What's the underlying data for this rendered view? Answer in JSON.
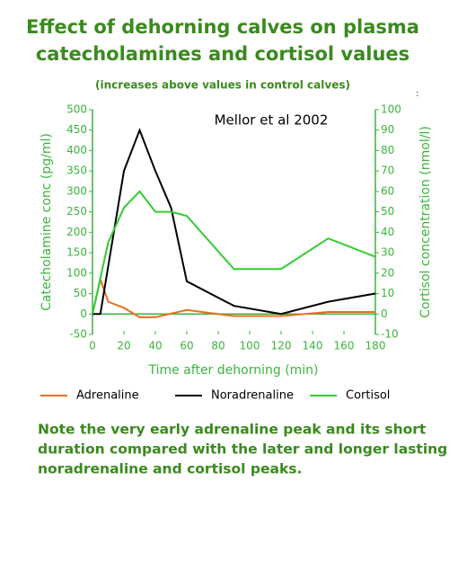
{
  "chart_data": {
    "type": "line",
    "title": [
      "Effect of dehorning calves on plasma",
      "catecholamines and cortisol values"
    ],
    "subtitle": "(increases above values in control calves)",
    "corner_mark": ":",
    "annotation": "Mellor et al 2002",
    "x_label": "Time after dehorning (min)",
    "y_label": "Catecholamine conc (pg/ml)",
    "y2_label": "Cortisol concentration (nmol/l)",
    "xlim": [
      0,
      180
    ],
    "xticks": [
      0,
      20,
      40,
      60,
      80,
      100,
      120,
      140,
      160,
      180
    ],
    "ylim": [
      -50,
      500
    ],
    "yticks": [
      -50,
      0,
      50,
      100,
      150,
      200,
      250,
      300,
      350,
      400,
      450,
      500
    ],
    "y2lim": [
      -10,
      100
    ],
    "y2ticks": [
      -10,
      0,
      10,
      20,
      30,
      40,
      50,
      60,
      70,
      80,
      90,
      100
    ],
    "series": [
      {
        "name": "Adrenaline",
        "color": "#e8701e",
        "x": [
          0,
          5,
          10,
          20,
          30,
          40,
          60,
          90,
          120,
          150,
          180
        ],
        "values": [
          0,
          85,
          30,
          15,
          -8,
          -8,
          10,
          -5,
          -5,
          5,
          5
        ]
      },
      {
        "name": "Noradrenaline",
        "color": "#000000",
        "x": [
          0,
          5,
          20,
          30,
          40,
          50,
          60,
          90,
          120,
          150,
          180
        ],
        "values": [
          0,
          0,
          350,
          450,
          350,
          260,
          80,
          20,
          0,
          30,
          50
        ]
      },
      {
        "name": "Cortisol",
        "color": "#33cc33",
        "axis": "y2",
        "x": [
          0,
          10,
          20,
          30,
          40,
          50,
          60,
          90,
          120,
          150,
          180
        ],
        "values": [
          0,
          35,
          52,
          60,
          50,
          50,
          48,
          22,
          22,
          37,
          28
        ]
      }
    ],
    "note": [
      "Note the very early adrenaline peak and its short",
      "duration compared with the later and longer lasting",
      "noradrenaline and cortisol peaks."
    ]
  }
}
